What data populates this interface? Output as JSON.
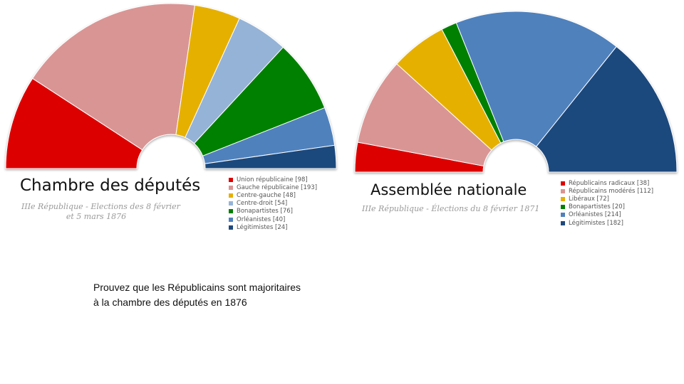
{
  "chart_data": [
    {
      "type": "pie",
      "variant": "hemicycle",
      "title": "Chambre des députés",
      "subtitle_line1": "IIIe République - Elections des 8 février",
      "subtitle_line2": "et 5 mars 1876",
      "categories": [
        "Union républicaine",
        "Gauche républicaine",
        "Centre-gauche",
        "Centre-droit",
        "Bonapartistes",
        "Orléanistes",
        "Légitimistes"
      ],
      "values": [
        98,
        193,
        48,
        54,
        76,
        40,
        24
      ],
      "colors": [
        "#dd0000",
        "#d99594",
        "#e6b000",
        "#95b3d7",
        "#008000",
        "#4f81bd",
        "#1f497d"
      ],
      "legend": [
        {
          "label": "Union républicaine [98]",
          "color": "#dd0000"
        },
        {
          "label": "Gauche républicaine [193]",
          "color": "#d99594"
        },
        {
          "label": "Centre-gauche [48]",
          "color": "#e6b000"
        },
        {
          "label": "Centre-droit [54]",
          "color": "#95b3d7"
        },
        {
          "label": "Bonapartistes [76]",
          "color": "#008000"
        },
        {
          "label": "Orléanistes [40]",
          "color": "#4f81bd"
        },
        {
          "label": "Légitimistes [24]",
          "color": "#1f497d"
        }
      ],
      "legend_position": "right"
    },
    {
      "type": "pie",
      "variant": "hemicycle",
      "title": "Assemblée nationale",
      "subtitle_line1": "IIIe République - Élections du 8 février 1871",
      "subtitle_line2": "",
      "categories": [
        "Républicains radicaux",
        "Républicains modérés",
        "Libéraux",
        "Bonapartistes",
        "Orléanistes",
        "Légitimistes"
      ],
      "values": [
        38,
        112,
        72,
        20,
        214,
        182
      ],
      "colors": [
        "#dd0000",
        "#d99594",
        "#e6b000",
        "#008000",
        "#4f81bd",
        "#1f497d"
      ],
      "legend": [
        {
          "label": "Républicains radicaux [38]",
          "color": "#dd0000"
        },
        {
          "label": "Républicains modérés [112]",
          "color": "#d99594"
        },
        {
          "label": "Libéraux [72]",
          "color": "#e6b000"
        },
        {
          "label": "Bonapartistes [20]",
          "color": "#008000"
        },
        {
          "label": "Orléanistes [214]",
          "color": "#4f81bd"
        },
        {
          "label": "Légitimistes [182]",
          "color": "#1f497d"
        }
      ],
      "legend_position": "right"
    }
  ],
  "question": "Prouvez que les Républicains sont majoritaires à la chambre des députés en 1876"
}
